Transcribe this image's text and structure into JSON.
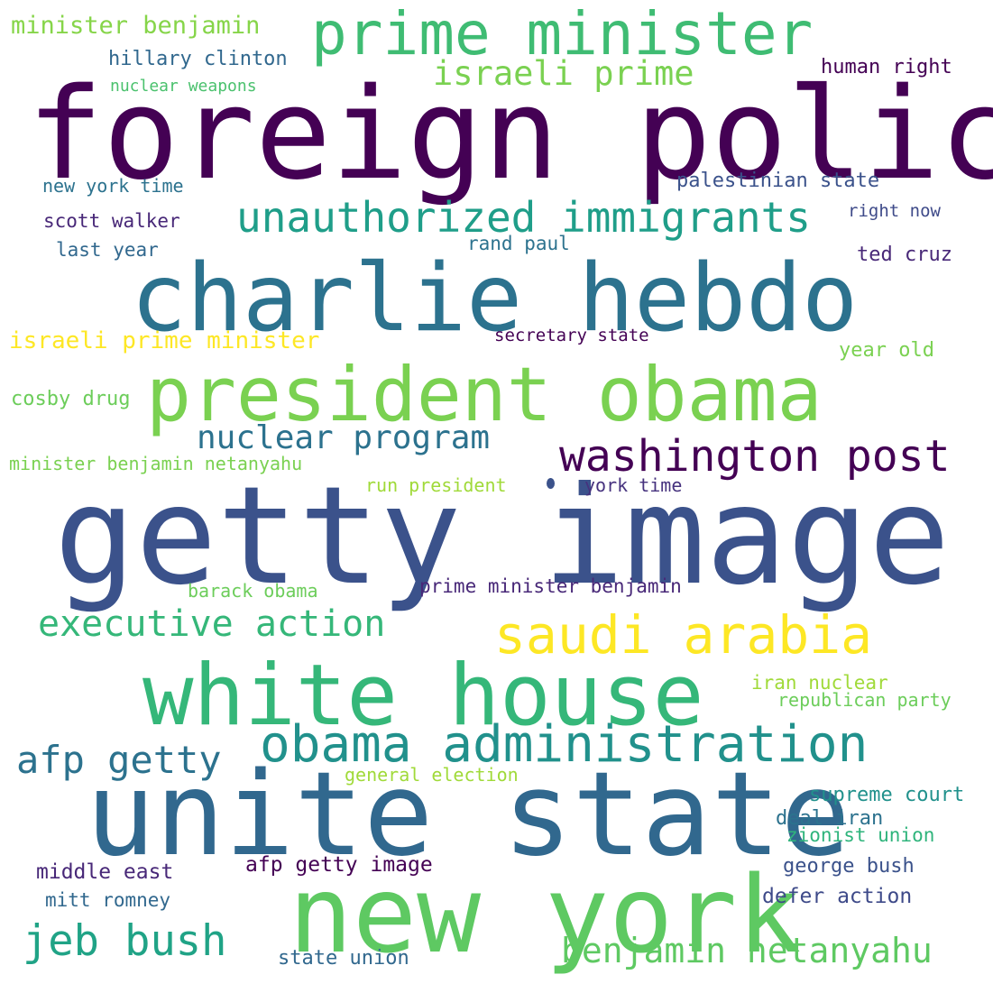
{
  "words": [
    {
      "text": "foreign policy",
      "color": "#440154"
    },
    {
      "text": "getty image",
      "color": "#3b528b"
    },
    {
      "text": "unite state",
      "color": "#31688e"
    },
    {
      "text": "charlie hebdo",
      "color": "#2c728e"
    },
    {
      "text": "new york",
      "color": "#5ec962"
    },
    {
      "text": "president obama",
      "color": "#7ad151"
    },
    {
      "text": "white house",
      "color": "#35b779"
    },
    {
      "text": "prime minister",
      "color": "#3fbc73"
    },
    {
      "text": "obama administration",
      "color": "#21918c"
    },
    {
      "text": "unauthorized immigrants",
      "color": "#1f9e89"
    },
    {
      "text": "saudi arabia",
      "color": "#fde725"
    },
    {
      "text": "washington post",
      "color": "#440154"
    },
    {
      "text": "jeb bush",
      "color": "#20a386"
    },
    {
      "text": "benjamin netanyahu",
      "color": "#5ec962"
    },
    {
      "text": "executive action",
      "color": "#35b779"
    },
    {
      "text": "afp getty",
      "color": "#2c728e"
    },
    {
      "text": "nuclear program",
      "color": "#2c728e"
    },
    {
      "text": "israeli prime",
      "color": "#7ad151"
    },
    {
      "text": "minister benjamin",
      "color": "#86d549"
    },
    {
      "text": "israeli prime minister",
      "color": "#fde725"
    },
    {
      "text": "hillary clinton",
      "color": "#31688e"
    },
    {
      "text": "nuclear weapons",
      "color": "#4ac16d"
    },
    {
      "text": "human right",
      "color": "#440154"
    },
    {
      "text": "new york time",
      "color": "#2c728e"
    },
    {
      "text": "palestinian state",
      "color": "#3b528b"
    },
    {
      "text": "scott walker",
      "color": "#482878"
    },
    {
      "text": "right now",
      "color": "#3e4a89"
    },
    {
      "text": "last year",
      "color": "#31688e"
    },
    {
      "text": "rand paul",
      "color": "#2c728e"
    },
    {
      "text": "ted cruz",
      "color": "#482878"
    },
    {
      "text": "secretary state",
      "color": "#440154"
    },
    {
      "text": "year old",
      "color": "#7ad151"
    },
    {
      "text": "cosby drug",
      "color": "#6ccd5a"
    },
    {
      "text": "minister benjamin netanyahu",
      "color": "#7ad151"
    },
    {
      "text": "run president",
      "color": "#a0da39"
    },
    {
      "text": "york time",
      "color": "#46327e"
    },
    {
      "text": "barack obama",
      "color": "#6ccd5a"
    },
    {
      "text": "prime minister benjamin",
      "color": "#482878"
    },
    {
      "text": "iran nuclear",
      "color": "#a0da39"
    },
    {
      "text": "republican party",
      "color": "#6ccd5a"
    },
    {
      "text": "general election",
      "color": "#a0da39"
    },
    {
      "text": "supreme court",
      "color": "#21918c"
    },
    {
      "text": "deal iran",
      "color": "#2c728e"
    },
    {
      "text": "zionist union",
      "color": "#2fb47c"
    },
    {
      "text": "middle east",
      "color": "#482878"
    },
    {
      "text": "afp getty image",
      "color": "#440154"
    },
    {
      "text": "george bush",
      "color": "#3b528b"
    },
    {
      "text": "mitt romney",
      "color": "#31688e"
    },
    {
      "text": "defer action",
      "color": "#3e4a89"
    },
    {
      "text": "state union",
      "color": "#31688e"
    }
  ]
}
